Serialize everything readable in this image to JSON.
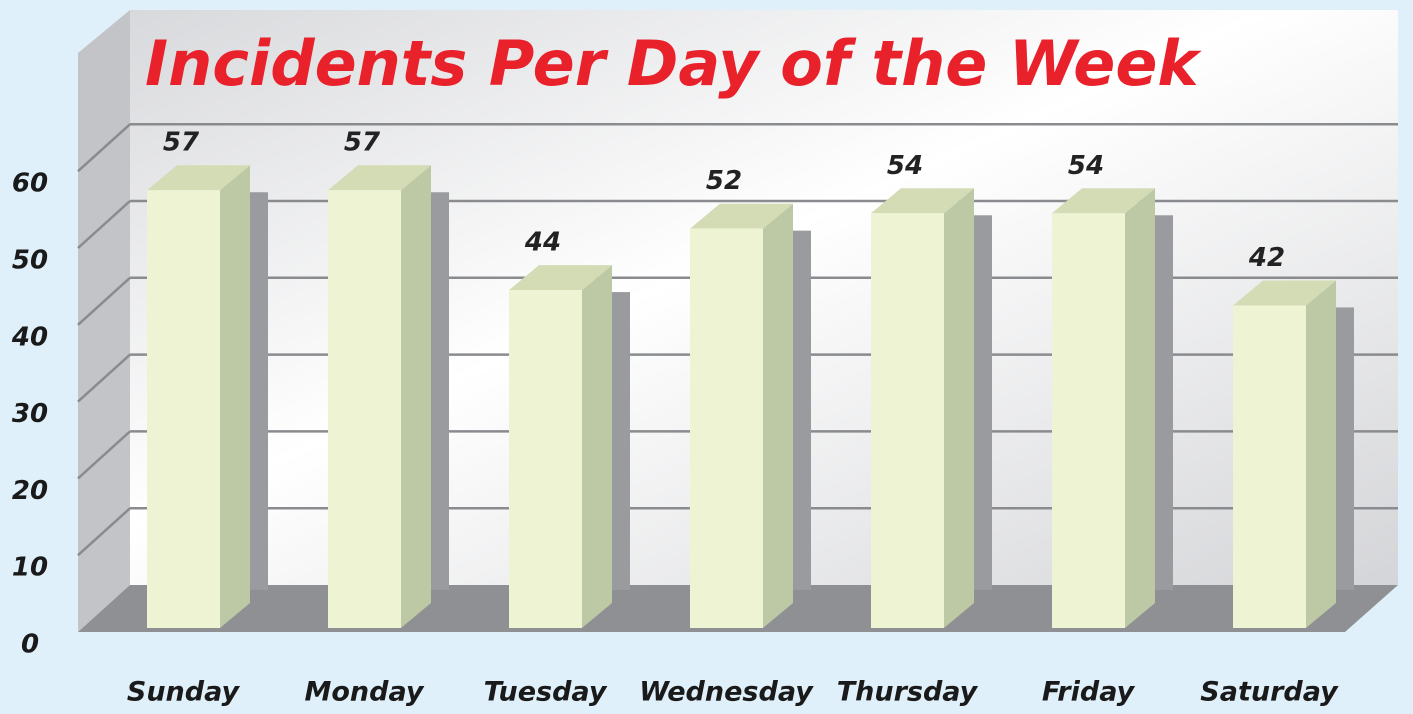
{
  "chart_data": {
    "type": "bar3d",
    "title": "Incidents Per Day of the Week",
    "categories": [
      "Sunday",
      "Monday",
      "Tuesday",
      "Wednesday",
      "Thursday",
      "Friday",
      "Saturday"
    ],
    "values": [
      57,
      57,
      44,
      52,
      54,
      54,
      42
    ],
    "color": "#eef3d3",
    "ylim": [
      0,
      60
    ],
    "yticks": [
      0,
      10,
      20,
      30,
      40,
      50,
      60
    ],
    "grid": true
  }
}
